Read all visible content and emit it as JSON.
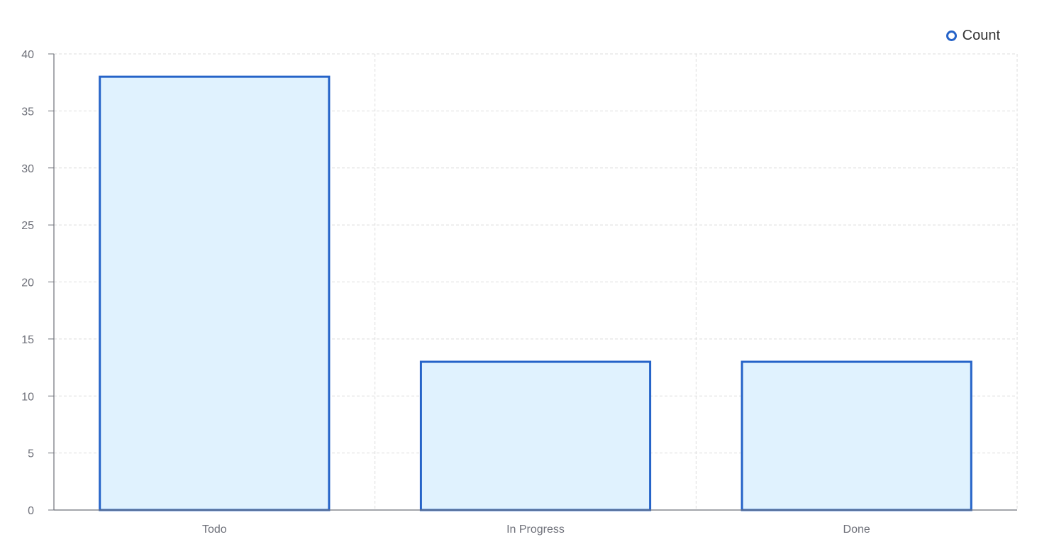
{
  "chart_data": {
    "type": "bar",
    "categories": [
      "Todo",
      "In Progress",
      "Done"
    ],
    "series": [
      {
        "name": "Count",
        "values": [
          38,
          13,
          13
        ]
      }
    ],
    "title": "",
    "xlabel": "",
    "ylabel": "",
    "ylim": [
      0,
      40
    ],
    "yticks": [
      0,
      5,
      10,
      15,
      20,
      25,
      30,
      35,
      40
    ],
    "grid": true,
    "legend": "top-right"
  },
  "colors": {
    "bar_fill": "#e0f2fe",
    "bar_stroke": "#2563c8",
    "grid": "#dddddd",
    "axis": "#6e7079"
  },
  "legend": {
    "label": "Count",
    "icon": "circle-outline-icon"
  }
}
